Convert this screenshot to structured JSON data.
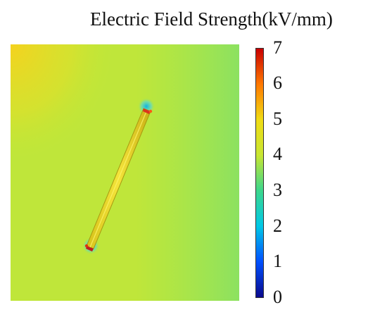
{
  "chart_data": {
    "type": "heatmap",
    "title": "Electric Field Strength(kV/mm)",
    "xlabel": "",
    "ylabel": "",
    "colorbar": {
      "min": 0,
      "max": 7,
      "ticks": [
        "0",
        "1",
        "2",
        "3",
        "4",
        "5",
        "6",
        "7"
      ],
      "colormap": [
        "#0a0a8c",
        "#0050ff",
        "#00c8e6",
        "#3cd78c",
        "#c8e632",
        "#f0dc14",
        "#ff7800",
        "#c80000"
      ]
    },
    "field": {
      "background_value": 4.5,
      "corner_top_left_value": 5.0,
      "right_edge_value": 4.0,
      "rod_value": 5.2,
      "rod_tip_value": 6.5,
      "tip_halo_value": 3.0
    }
  }
}
